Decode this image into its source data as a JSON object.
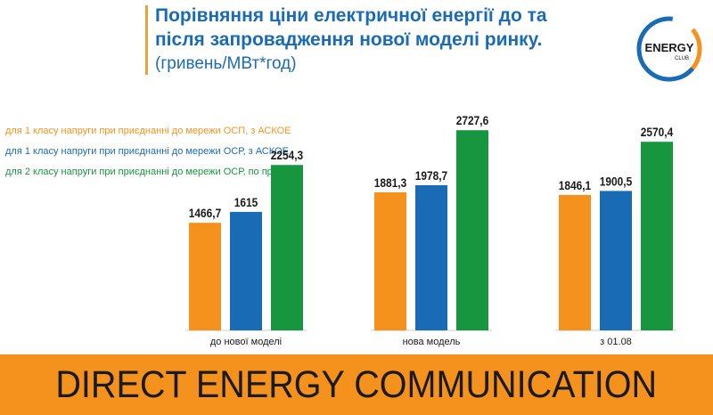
{
  "header": {
    "title_line1": "Порівняння ціни електричної енергії до та",
    "title_line2": "після запровадження нової моделі ринку.",
    "subtitle": "(гривень/МВт*год)"
  },
  "logo": {
    "text": "ENERGY",
    "subtext": "CLUB",
    "colors": {
      "ring_blue": "#1a6bb5",
      "ring_orange": "#f5921e"
    }
  },
  "footer": {
    "text": "DIRECT ENERGY COMMUNICATION"
  },
  "colors": {
    "orange": "#f5921e",
    "blue": "#1a6bb5",
    "green": "#17953f",
    "footer_bg": "#f5921e"
  },
  "chart_data": {
    "type": "bar",
    "categories": [
      "до нової моделі",
      "нова модель",
      "з 01.08"
    ],
    "series": [
      {
        "name": "для 1 класу напруги при приєднанні до мережи ОСП, з АСКОЕ",
        "values": [
          1466.7,
          1881.3,
          1846.1
        ],
        "labels": [
          "1466,7",
          "1881,3",
          "1846,1"
        ],
        "color": "#f5921e"
      },
      {
        "name": "для 1 класу напруги при приєднанні до мережи ОСР, з АСКОЕ",
        "values": [
          1615,
          1978.7,
          1900.5
        ],
        "labels": [
          "1615",
          "1978,7",
          "1900,5"
        ],
        "color": "#1a6bb5"
      },
      {
        "name": "для 2 класу напруги при приєднанні до мережи ОСР, по профілю",
        "values": [
          2254.3,
          2727.6,
          2570.4
        ],
        "labels": [
          "2254,3",
          "2727,6",
          "2570,4"
        ],
        "color": "#17953f"
      }
    ],
    "legend": "top-left",
    "grid": false
  }
}
